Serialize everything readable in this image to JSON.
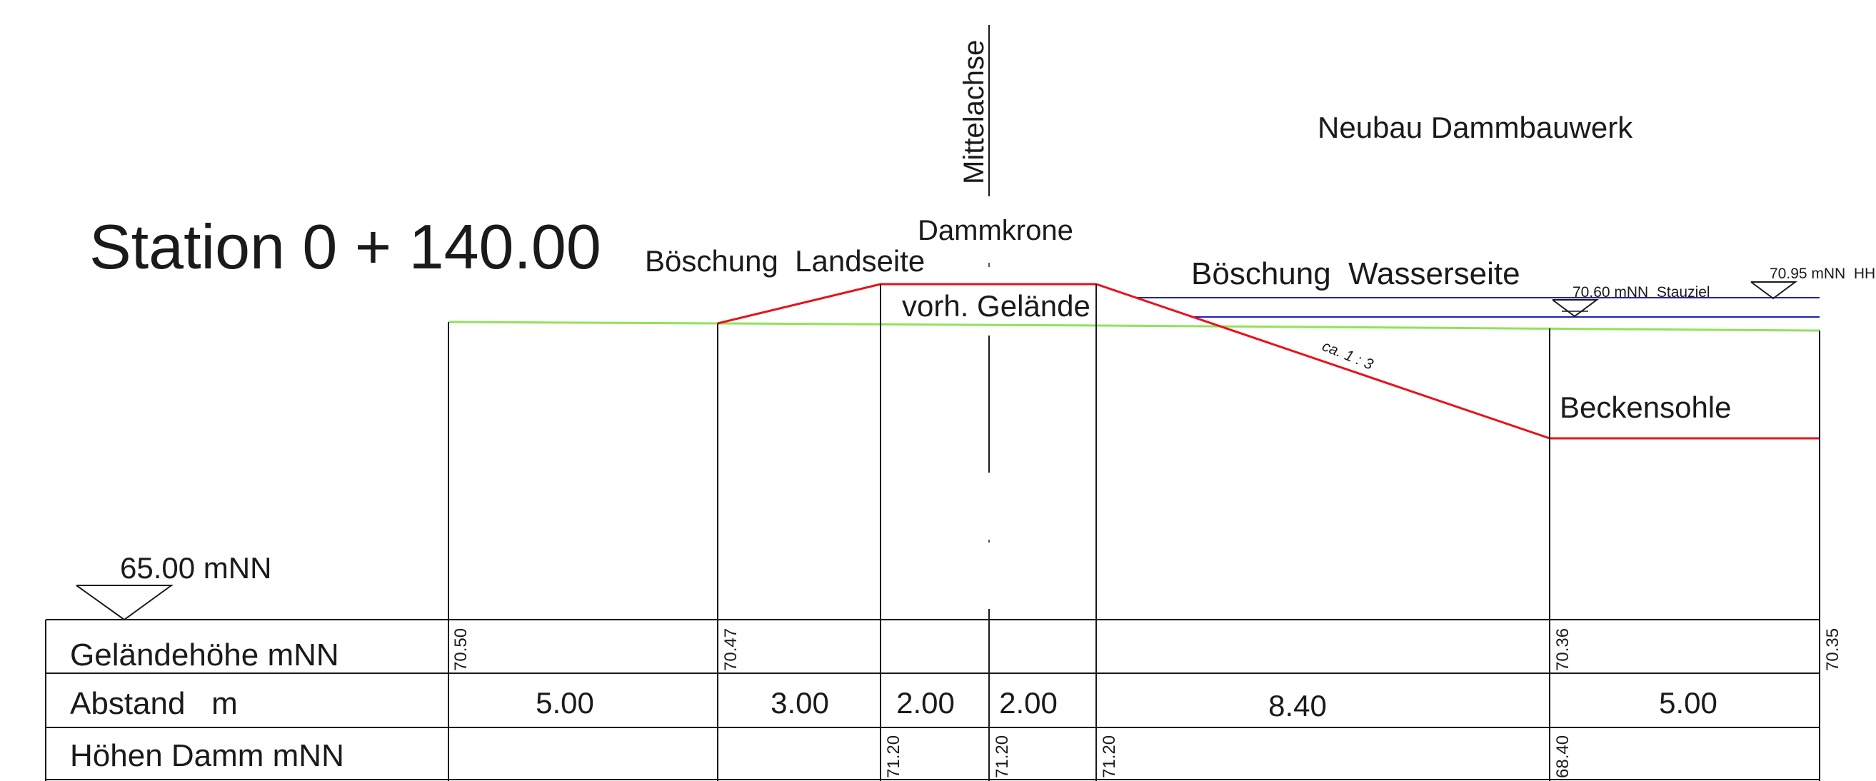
{
  "title": "Station 0 + 140.00",
  "project": "Neubau Dammbauwerk",
  "labels": {
    "axis": "Mittelachse",
    "crest": "Dammkrone",
    "slope_land": "Böschung  Landseite",
    "slope_water": "Böschung  Wasserseite",
    "existing_ground": "vorh. Gelände",
    "basin_floor": "Beckensohle",
    "slope_ratio": "ca. 1 : 3",
    "datum": "65.00 mNN",
    "water_stauziel": "70.60 mNN  Stauziel",
    "water_hhw": "70.95 mNN  HH"
  },
  "table": {
    "rows": [
      {
        "header": "Geländehöhe mNN"
      },
      {
        "header": "Abstand   m"
      },
      {
        "header": "Höhen Damm mNN"
      }
    ],
    "ground_heights": [
      "70.50",
      "70.47",
      "70.36",
      "70.35"
    ],
    "distances": [
      "5.00",
      "3.00",
      "2.00",
      "2.00",
      "8.40",
      "5.00"
    ],
    "dam_heights": [
      "71.20",
      "71.20",
      "71.20",
      "68.40"
    ]
  },
  "colors": {
    "dam": "#e5141a",
    "ground": "#8fe35a",
    "water": "#2222aa",
    "ink": "#1a1a1a"
  }
}
